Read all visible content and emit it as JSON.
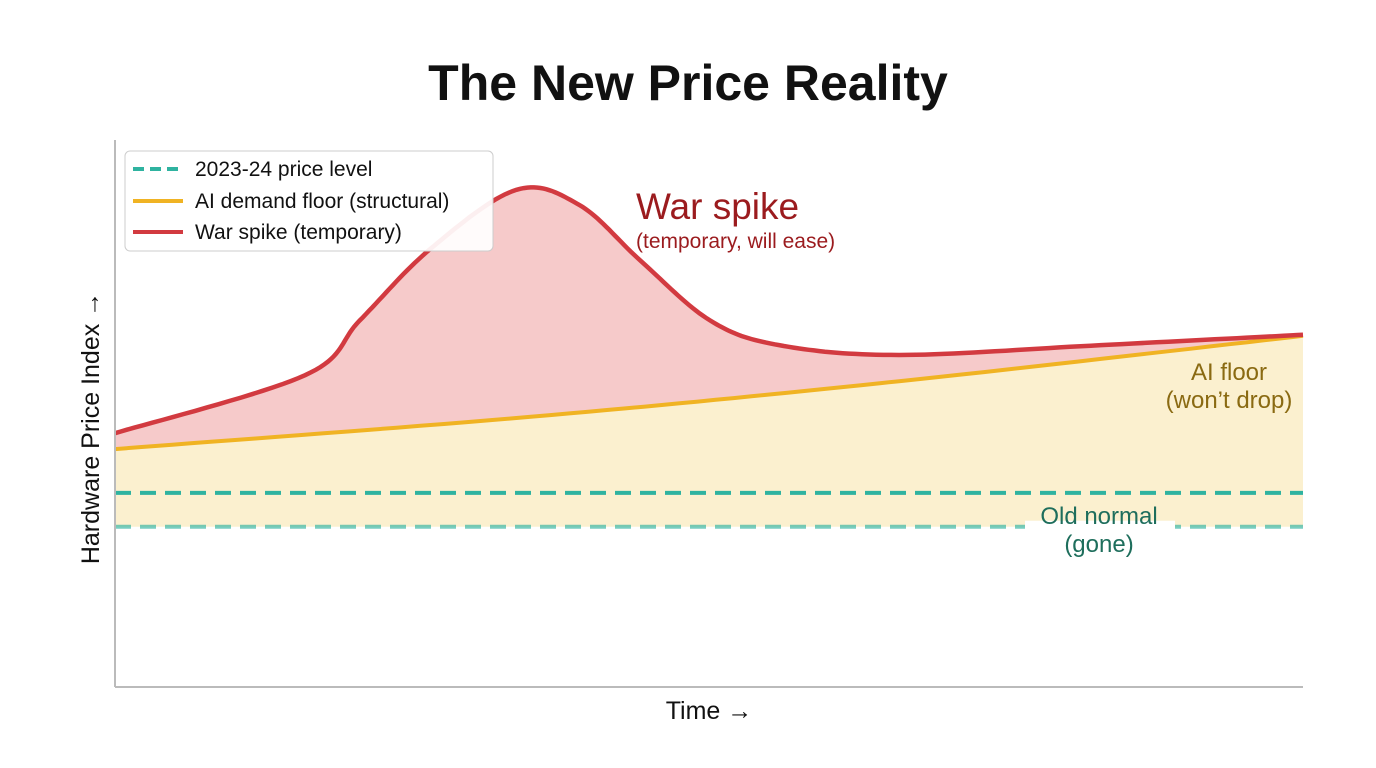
{
  "chart_data": {
    "type": "area",
    "title": "The New Price Reality",
    "xlabel": "Time →",
    "ylabel": "Hardware Price Index →",
    "xlim": [
      0,
      100
    ],
    "ylim": [
      0,
      100
    ],
    "grid": false,
    "legend_position": "top-left",
    "series": [
      {
        "name": "2023-24 price level",
        "style": "dashed",
        "color": "#2fb3a0",
        "levels": [
          35.5,
          29.3
        ]
      },
      {
        "name": "AI demand floor (structural)",
        "style": "solid",
        "color": "#f0b323",
        "fill": "#fbf0cf",
        "x": [
          0,
          35,
          66,
          100
        ],
        "y": [
          43.5,
          49.4,
          55.9,
          64.2
        ]
      },
      {
        "name": "War spike (temporary)",
        "style": "solid",
        "color": "#d23a40",
        "fill": "#f6caca",
        "x": [
          0,
          16,
          20.6,
          26.5,
          33.8,
          39.1,
          44.2,
          50.1,
          55.9,
          66,
          83,
          100
        ],
        "y": [
          46.4,
          57,
          67,
          80,
          90.9,
          88.1,
          78,
          67,
          62.5,
          60.7,
          62.5,
          64.4
        ]
      }
    ],
    "annotations": {
      "war_title": "War spike",
      "war_sub": "(temporary, will ease)",
      "floor_line1": "AI floor",
      "floor_line2": "(won’t drop)",
      "old_line1": "Old normal",
      "old_line2": "(gone)"
    }
  }
}
